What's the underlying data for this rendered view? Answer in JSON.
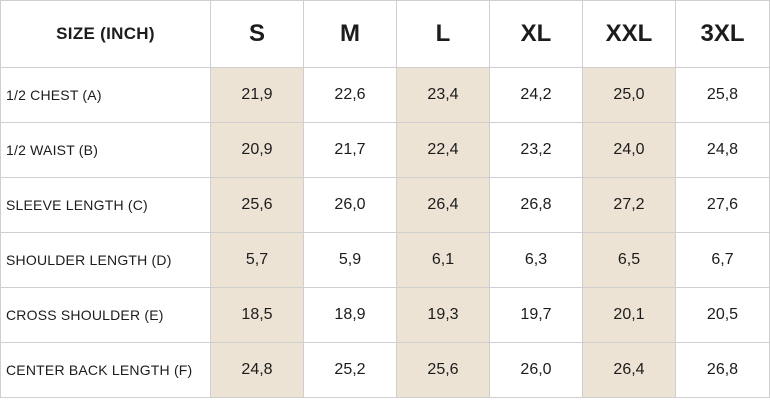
{
  "colors": {
    "shaded_column": "#ece3d5",
    "border": "#cfcfcf",
    "text": "#1c1c1c"
  },
  "table": {
    "corner_label": "SIZE (INCH)",
    "sizes": [
      "S",
      "M",
      "L",
      "XL",
      "XXL",
      "3XL"
    ],
    "shaded_sizes": [
      "S",
      "L",
      "XXL"
    ],
    "rows": [
      {
        "label": "1/2 CHEST (A)",
        "values": [
          "21,9",
          "22,6",
          "23,4",
          "24,2",
          "25,0",
          "25,8"
        ]
      },
      {
        "label": "1/2 WAIST (B)",
        "values": [
          "20,9",
          "21,7",
          "22,4",
          "23,2",
          "24,0",
          "24,8"
        ]
      },
      {
        "label": "SLEEVE LENGTH (C)",
        "values": [
          "25,6",
          "26,0",
          "26,4",
          "26,8",
          "27,2",
          "27,6"
        ]
      },
      {
        "label": "SHOULDER LENGTH (D)",
        "values": [
          "5,7",
          "5,9",
          "6,1",
          "6,3",
          "6,5",
          "6,7"
        ]
      },
      {
        "label": "CROSS SHOULDER (E)",
        "values": [
          "18,5",
          "18,9",
          "19,3",
          "19,7",
          "20,1",
          "20,5"
        ]
      },
      {
        "label": "CENTER BACK LENGTH (F)",
        "values": [
          "24,8",
          "25,2",
          "25,6",
          "26,0",
          "26,4",
          "26,8"
        ]
      }
    ]
  }
}
